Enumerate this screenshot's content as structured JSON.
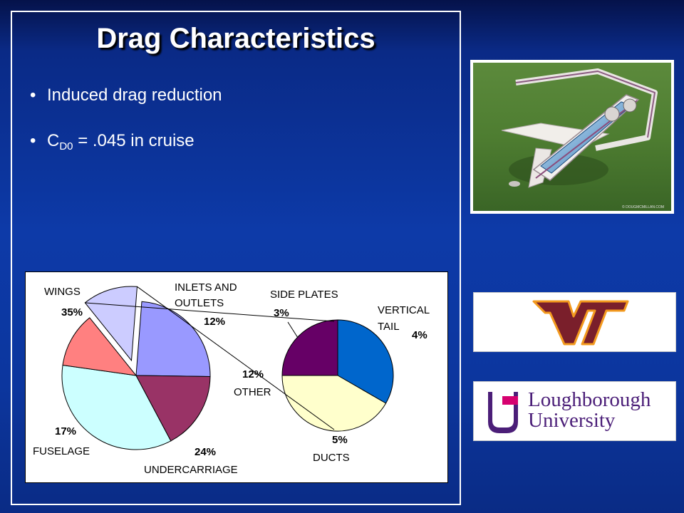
{
  "slide": {
    "title": "Drag Characteristics",
    "bullets": [
      {
        "text": "Induced drag reduction"
      },
      {
        "prefix": "C",
        "subscript": "D0",
        "suffix": " = .045 in cruise"
      }
    ]
  },
  "chart_data": {
    "type": "pie",
    "main_pie": {
      "slices": [
        {
          "label": "WINGS",
          "value": 35,
          "label_text": "35%",
          "color": "#ccffff"
        },
        {
          "label": "INLETS AND OUTLETS",
          "value": 12,
          "label_text": "12%",
          "color": "#ff8080"
        },
        {
          "label": "OTHER",
          "value": 12,
          "label_text": "12%",
          "color": "#ccccff",
          "exploded": true
        },
        {
          "label": "UNDERCARRIAGE",
          "value": 24,
          "label_text": "24%",
          "color": "#9999ff"
        },
        {
          "label": "FUSELAGE",
          "value": 17,
          "label_text": "17%",
          "color": "#993366"
        }
      ]
    },
    "sub_pie": {
      "breakdown_of": "OTHER",
      "slices": [
        {
          "label": "SIDE PLATES",
          "value": 3,
          "label_text": "3%",
          "color": "#660066"
        },
        {
          "label": "VERTICAL TAIL",
          "value": 4,
          "label_text": "4%",
          "color": "#0066cc"
        },
        {
          "label": "DUCTS",
          "value": 5,
          "label_text": "5%",
          "color": "#ffffcc"
        }
      ]
    },
    "labels": {
      "wings_line1": "WINGS",
      "inlets_line1": "INLETS AND",
      "inlets_line2": "OUTLETS",
      "side_plates": "SIDE PLATES",
      "vertical_line1": "VERTICAL",
      "vertical_line2": "TAIL",
      "other": "OTHER",
      "fuselage": "FUSELAGE",
      "undercarriage": "UNDERCARRIAGE",
      "ducts": "DUCTS"
    }
  },
  "images": {
    "aircraft_photo": {
      "icon": "aircraft-render-icon",
      "caption": "© DOUGMCMILLAN.COM"
    },
    "vt_logo": {
      "icon": "virginia-tech-logo-icon",
      "text": "VT",
      "color": "#7a1f2b",
      "outline": "#f39a1e"
    },
    "loughborough_logo": {
      "icon": "loughborough-logo-icon",
      "line1": "Loughborough",
      "line2": "University",
      "color": "#4b1e78"
    }
  }
}
